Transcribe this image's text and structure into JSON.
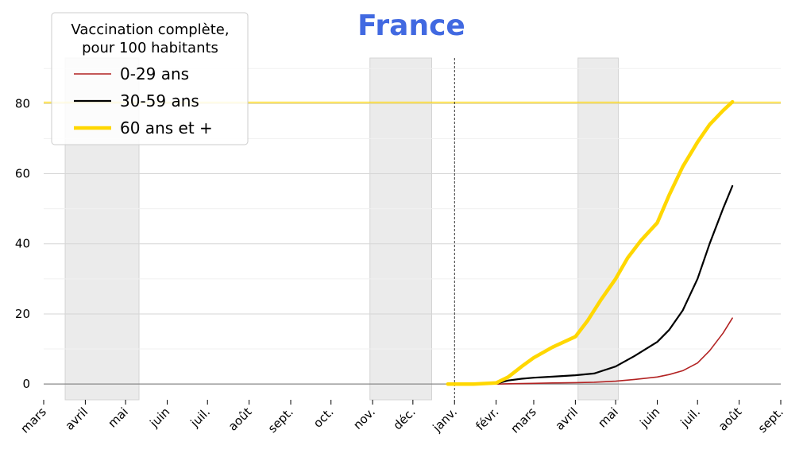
{
  "chart_data": {
    "type": "line",
    "title": "France",
    "title_color": "#4169E1",
    "xlabel": "",
    "ylabel": "",
    "y_ticks": [
      0,
      20,
      40,
      60,
      80
    ],
    "ylim": [
      -4.5,
      93
    ],
    "x_tick_labels": [
      "mars",
      "avril",
      "mai",
      "juin",
      "juil.",
      "août",
      "sept.",
      "oct.",
      "nov.",
      "déc.",
      "janv.",
      "févr.",
      "mars",
      "avril",
      "mai",
      "juin",
      "juil.",
      "août",
      "sept."
    ],
    "x_tick_dates": [
      "2020-03-01",
      "2020-04-01",
      "2020-05-01",
      "2020-06-01",
      "2020-07-01",
      "2020-08-01",
      "2020-09-01",
      "2020-10-01",
      "2020-11-01",
      "2020-12-01",
      "2021-01-01",
      "2021-02-01",
      "2021-03-01",
      "2021-04-01",
      "2021-05-01",
      "2021-06-01",
      "2021-07-01",
      "2021-08-01",
      "2021-09-01"
    ],
    "xlim": [
      "2020-03-01",
      "2021-09-01"
    ],
    "shaded_periods": [
      [
        "2020-03-17",
        "2020-05-11"
      ],
      [
        "2020-10-30",
        "2020-12-15"
      ],
      [
        "2021-04-03",
        "2021-05-03"
      ]
    ],
    "vertical_marker_date": "2021-01-01",
    "horizontal_reference": {
      "y": 80.3,
      "color": "#FFD700"
    },
    "grid": true,
    "legend": {
      "title": "Vaccination complète,\npour 100 habitants",
      "placement": "top-left"
    },
    "series": [
      {
        "name": "0-29 ans",
        "color": "#B22222",
        "x": [
          "2020-12-27",
          "2021-01-15",
          "2021-02-01",
          "2021-02-15",
          "2021-03-01",
          "2021-03-15",
          "2021-04-01",
          "2021-04-15",
          "2021-05-01",
          "2021-05-15",
          "2021-06-01",
          "2021-06-10",
          "2021-06-20",
          "2021-07-01",
          "2021-07-10",
          "2021-07-20",
          "2021-07-27"
        ],
        "y": [
          0,
          0,
          0,
          0.1,
          0.2,
          0.3,
          0.4,
          0.5,
          0.8,
          1.3,
          2.0,
          2.7,
          3.8,
          6.0,
          9.5,
          14.5,
          18.8
        ]
      },
      {
        "name": "30-59 ans",
        "color": "#000000",
        "x": [
          "2020-12-27",
          "2021-01-15",
          "2021-02-01",
          "2021-02-10",
          "2021-02-20",
          "2021-03-01",
          "2021-03-15",
          "2021-04-01",
          "2021-04-15",
          "2021-05-01",
          "2021-05-15",
          "2021-06-01",
          "2021-06-10",
          "2021-06-20",
          "2021-07-01",
          "2021-07-10",
          "2021-07-20",
          "2021-07-27"
        ],
        "y": [
          0,
          0,
          0.1,
          1.0,
          1.5,
          1.8,
          2.1,
          2.5,
          3.0,
          5.0,
          8.0,
          12.0,
          15.5,
          21.0,
          30.0,
          40.0,
          50.0,
          56.5
        ]
      },
      {
        "name": "60 ans et +",
        "color": "#FFD700",
        "x": [
          "2020-12-27",
          "2021-01-15",
          "2021-02-01",
          "2021-02-10",
          "2021-02-20",
          "2021-03-01",
          "2021-03-15",
          "2021-04-01",
          "2021-04-10",
          "2021-04-20",
          "2021-05-01",
          "2021-05-10",
          "2021-05-20",
          "2021-06-01",
          "2021-06-10",
          "2021-06-20",
          "2021-07-01",
          "2021-07-10",
          "2021-07-20",
          "2021-07-27"
        ],
        "y": [
          0,
          0,
          0.3,
          2.0,
          5.0,
          7.5,
          10.5,
          13.5,
          18.0,
          24.0,
          30.0,
          36.0,
          41.0,
          46.0,
          54.0,
          62.0,
          69.0,
          74.0,
          78.0,
          80.5
        ]
      }
    ]
  }
}
